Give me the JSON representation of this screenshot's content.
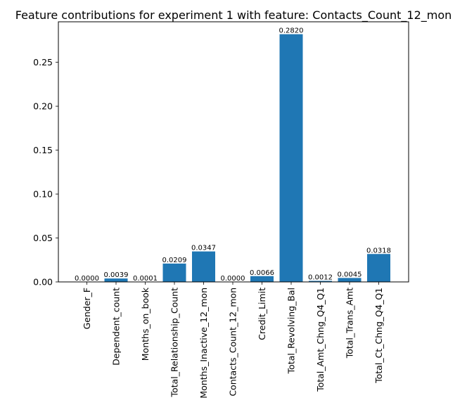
{
  "chart_data": {
    "type": "bar",
    "title": "Feature contributions for experiment 1 with feature: Contacts_Count_12_mon",
    "xlabel": "",
    "ylabel": "",
    "categories": [
      "Gender_F",
      "Dependent_count",
      "Months_on_book",
      "Total_Relationship_Count",
      "Months_Inactive_12_mon",
      "Contacts_Count_12_mon",
      "Credit_Limit",
      "Total_Revolving_Bal",
      "Total_Amt_Chng_Q4_Q1",
      "Total_Trans_Amt",
      "Total_Ct_Chng_Q4_Q1"
    ],
    "values": [
      0.0,
      0.0039,
      0.0001,
      0.0209,
      0.0347,
      0.0,
      0.0066,
      0.282,
      0.0012,
      0.0045,
      0.0318
    ],
    "value_labels": [
      "0.0000",
      "0.0039",
      "0.0001",
      "0.0209",
      "0.0347",
      "0.0000",
      "0.0066",
      "0.2820",
      "0.0012",
      "0.0045",
      "0.0318"
    ],
    "yticks": [
      0.0,
      0.05,
      0.1,
      0.15,
      0.2,
      0.25
    ],
    "ytick_labels": [
      "0.00",
      "0.05",
      "0.10",
      "0.15",
      "0.20",
      "0.25"
    ],
    "ylim": [
      0,
      0.2961
    ],
    "bar_color": "#1f77b4",
    "grid": false,
    "legend": "none"
  }
}
